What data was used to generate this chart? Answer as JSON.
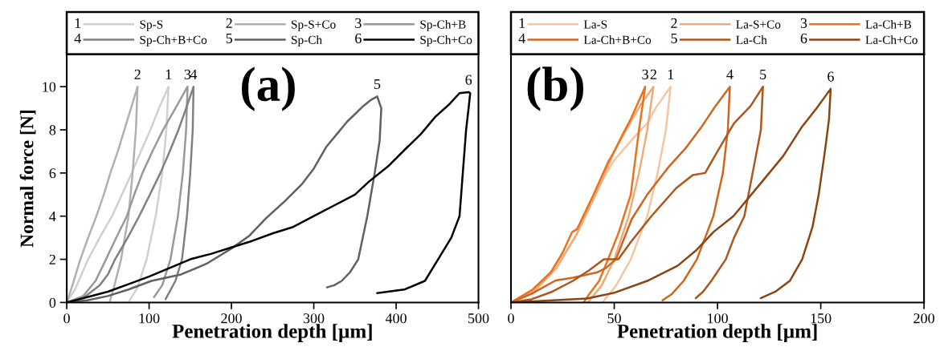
{
  "chart_data": [
    {
      "type": "line",
      "title": "(a)",
      "xlabel": "Penetration depth [µm]",
      "ylabel": "Normal force [N]",
      "xlim": [
        0,
        500
      ],
      "xticks": [
        0,
        100,
        200,
        300,
        400,
        500
      ],
      "ylim": [
        0,
        11.5
      ],
      "yticks": [
        0,
        2,
        4,
        6,
        8,
        10
      ],
      "grid": false,
      "legend": "top",
      "marker": "none",
      "line_style": "solid",
      "series": [
        {
          "name": "Sp-S",
          "color": "#d0d0d0",
          "x": [
            0,
            10,
            26,
            40,
            55,
            67,
            79,
            90,
            101.6,
            112,
            123.6,
            121,
            116,
            108,
            97,
            86,
            75
          ],
          "values": [
            0,
            0.6,
            2,
            3,
            4,
            5,
            6,
            7,
            8,
            9,
            10,
            8,
            6,
            4,
            2,
            0.7,
            0
          ]
        },
        {
          "name": "Sp-S+Co",
          "color": "#b0b0b0",
          "x": [
            0,
            7,
            16.5,
            26,
            36,
            45,
            53,
            62,
            70,
            78,
            86,
            84,
            80,
            75,
            66,
            58,
            52
          ],
          "values": [
            0,
            0.8,
            2,
            3,
            4,
            5,
            6,
            7,
            8,
            9,
            10,
            8,
            6,
            4,
            2,
            0.8,
            0
          ]
        },
        {
          "name": "Sp-Ch+B",
          "color": "#999999",
          "x": [
            0,
            20,
            35,
            47.7,
            60,
            73,
            82,
            92,
            104,
            117,
            132,
            146.7,
            145,
            141,
            135,
            126,
            116,
            106
          ],
          "values": [
            0,
            0.3,
            1,
            2,
            3,
            4,
            5,
            6,
            7,
            8,
            9,
            10,
            8,
            6,
            4,
            2,
            0.8,
            0.25
          ]
        },
        {
          "name": "Sp-Ch+B+Co",
          "color": "#808080",
          "x": [
            0,
            20,
            40,
            50,
            58.7,
            74,
            88,
            101,
            113.7,
            125,
            135.7,
            145,
            154,
            153,
            150,
            146,
            140,
            132,
            120
          ],
          "values": [
            0,
            0.2,
            0.8,
            1.3,
            2,
            3,
            4,
            5,
            6,
            7,
            8,
            9,
            10,
            8,
            6,
            4,
            2,
            1,
            0.15
          ]
        },
        {
          "name": "Sp-Ch",
          "color": "#606060",
          "x": [
            0,
            25,
            50,
            75,
            103,
            139,
            170,
            200,
            222,
            242,
            265,
            286,
            300,
            315,
            328,
            341,
            352,
            360,
            370,
            377,
            382,
            380,
            374,
            365,
            354,
            344,
            334,
            325,
            316
          ],
          "values": [
            0,
            0.1,
            0.3,
            0.6,
            1.0,
            1.3,
            1.8,
            2.5,
            3.1,
            3.9,
            4.7,
            5.5,
            6.2,
            7.2,
            7.8,
            8.4,
            8.8,
            9.1,
            9.4,
            9.55,
            9.0,
            7.5,
            6,
            4,
            2,
            1.4,
            1,
            0.8,
            0.7
          ]
        },
        {
          "name": "Sp-Ch+Co",
          "color": "#000000",
          "x": [
            0,
            25,
            50,
            75,
            100,
            125,
            150,
            175,
            200,
            225,
            250,
            275,
            300,
            325,
            350,
            367,
            390,
            411,
            430,
            447.5,
            465,
            477,
            488,
            490,
            488,
            485,
            481,
            477,
            467,
            451,
            435,
            410,
            377
          ],
          "values": [
            0,
            0.25,
            0.5,
            0.85,
            1.2,
            1.6,
            2.0,
            2.25,
            2.55,
            2.85,
            3.2,
            3.5,
            4.0,
            4.5,
            5.0,
            5.6,
            6.3,
            7.1,
            7.8,
            8.6,
            9.2,
            9.7,
            9.75,
            9.7,
            9,
            8,
            6,
            4,
            3,
            2,
            1,
            0.6,
            0.43
          ]
        }
      ],
      "annotations": [
        {
          "text": "1",
          "x": 123.6,
          "y": 10
        },
        {
          "text": "2",
          "x": 86,
          "y": 10
        },
        {
          "text": "3",
          "x": 146.7,
          "y": 10
        },
        {
          "text": "4",
          "x": 154,
          "y": 10
        },
        {
          "text": "5",
          "x": 377,
          "y": 9.55
        },
        {
          "text": "6",
          "x": 488,
          "y": 9.75
        }
      ]
    },
    {
      "type": "line",
      "title": "(b)",
      "xlabel": "Penetration depth [µm]",
      "xlim": [
        0,
        200
      ],
      "xticks": [
        0,
        50,
        100,
        150,
        200
      ],
      "ylim": [
        0,
        11.5
      ],
      "tick_labels": "x",
      "grid": false,
      "legend": "top",
      "marker": "none",
      "line_style": "solid",
      "series": [
        {
          "name": "La-S",
          "color": "#f6c6a0",
          "x": [
            0,
            12,
            22,
            32,
            42,
            50,
            60,
            66,
            70,
            77.3,
            75,
            71,
            66,
            58,
            51,
            44.3
          ],
          "values": [
            0,
            0.6,
            1.6,
            3.2,
            5.3,
            6.6,
            7.7,
            8.3,
            9.0,
            10,
            8,
            6,
            4,
            2,
            0.8,
            0
          ]
        },
        {
          "name": "La-S+Co",
          "color": "#f2aa78",
          "x": [
            0,
            12,
            22,
            32,
            42,
            50,
            57,
            63,
            69,
            66,
            62,
            57,
            50,
            44,
            37.2
          ],
          "values": [
            0,
            0.6,
            1.6,
            3.2,
            5.2,
            7,
            8.2,
            9.2,
            10,
            8,
            6,
            4,
            2,
            0.8,
            0
          ]
        },
        {
          "name": "La-Ch+B",
          "color": "#e8731e",
          "x": [
            0,
            10.5,
            19.3,
            25,
            29.5,
            32,
            40,
            47,
            50,
            53.6,
            58,
            65,
            62,
            58,
            52,
            47,
            42.7,
            38,
            35.2
          ],
          "values": [
            0,
            0.6,
            1.4,
            2.3,
            3.25,
            3.4,
            5,
            6.5,
            7,
            7.7,
            8.5,
            10,
            8,
            5,
            3.2,
            2,
            1,
            0.4,
            0
          ]
        },
        {
          "name": "La-Ch+B+Co",
          "color": "#d0661c",
          "x": [
            0,
            10,
            21.6,
            30,
            41.6,
            46,
            50.8,
            58.5,
            66,
            76.5,
            85,
            92,
            99,
            106,
            105,
            102.6,
            98,
            94,
            90,
            83.6,
            78,
            73.4
          ],
          "values": [
            0,
            0.4,
            1.02,
            1.15,
            1.39,
            1.6,
            2.0,
            3.87,
            5.0,
            6.3,
            7.2,
            8.1,
            9.1,
            10,
            8,
            6,
            4,
            3,
            2,
            1,
            0.4,
            0.1
          ]
        },
        {
          "name": "La-Ch",
          "color": "#b0561a",
          "x": [
            0,
            10,
            20,
            30,
            38,
            45,
            52,
            58,
            68,
            80,
            88,
            94,
            100,
            108,
            116,
            122,
            121,
            117,
            113,
            108,
            104,
            97,
            93,
            89.5
          ],
          "values": [
            0,
            0.15,
            0.5,
            1.0,
            1.5,
            2.0,
            2.0,
            2.8,
            4.0,
            5.3,
            5.9,
            6.0,
            7,
            8.3,
            9.1,
            10,
            8,
            6,
            4,
            3,
            2,
            1,
            0.5,
            0.2
          ]
        },
        {
          "name": "La-Ch+Co",
          "color": "#8b4513",
          "x": [
            0,
            15,
            36.8,
            50,
            66,
            80.7,
            89.5,
            98.2,
            107.7,
            121.6,
            131.9,
            140.6,
            148,
            154.8,
            154,
            152,
            149,
            146,
            141,
            135,
            128,
            120.9
          ],
          "values": [
            0,
            0.07,
            0.18,
            0.45,
            1.0,
            1.7,
            2.4,
            3.28,
            4.0,
            5.6,
            6.8,
            8.1,
            9.0,
            9.9,
            8.5,
            7,
            5,
            3.5,
            2,
            1,
            0.5,
            0.2
          ]
        }
      ],
      "annotations": [
        {
          "text": "1",
          "x": 77.3,
          "y": 10
        },
        {
          "text": "2",
          "x": 69,
          "y": 10
        },
        {
          "text": "3",
          "x": 65,
          "y": 10
        },
        {
          "text": "4",
          "x": 106,
          "y": 10
        },
        {
          "text": "5",
          "x": 122,
          "y": 10
        },
        {
          "text": "6",
          "x": 154.8,
          "y": 9.9
        }
      ]
    }
  ]
}
